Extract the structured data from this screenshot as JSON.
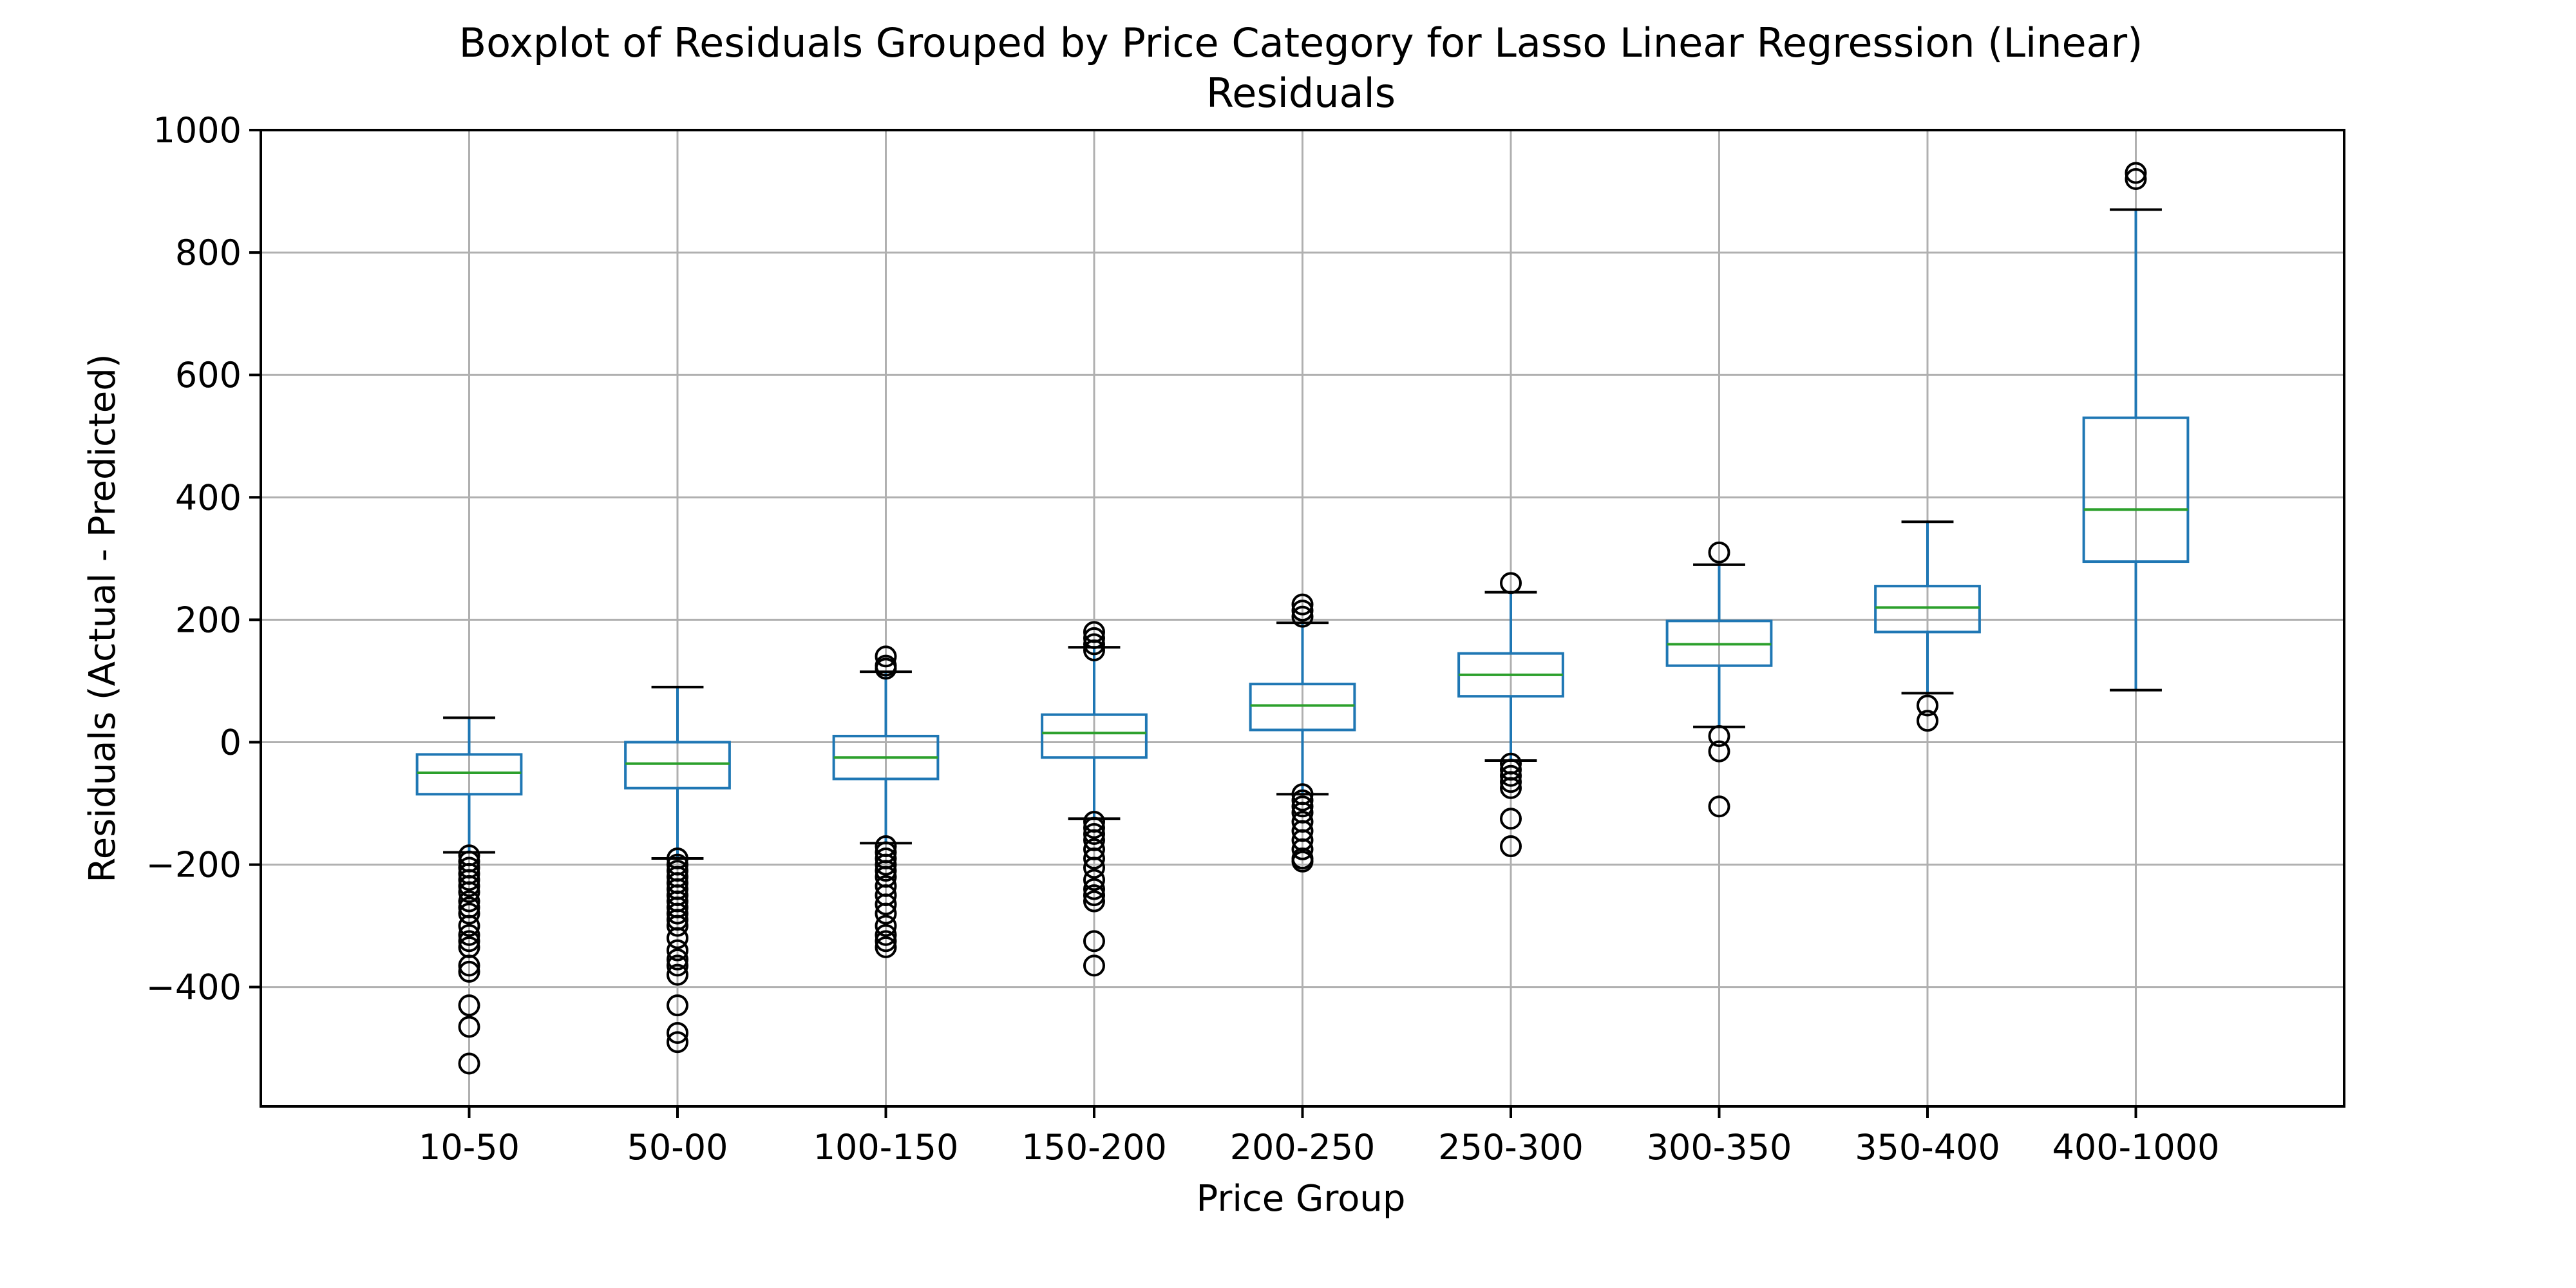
{
  "chart_data": {
    "type": "boxplot",
    "title": "Boxplot of Residuals Grouped by Price Category for Lasso Linear Regression (Linear)",
    "subtitle": "Residuals",
    "xlabel": "Price Group",
    "ylabel": "Residuals (Actual - Predicted)",
    "ylim": [
      -595,
      1000
    ],
    "yticks": [
      -400,
      -200,
      0,
      200,
      400,
      600,
      800,
      1000
    ],
    "ytick_labels": [
      "−400",
      "−200",
      "0",
      "200",
      "400",
      "600",
      "800",
      "1000"
    ],
    "grid": true,
    "categories": [
      "10-50",
      "50-00",
      "100-150",
      "150-200",
      "200-250",
      "250-300",
      "300-350",
      "350-400",
      "400-1000"
    ],
    "boxes": [
      {
        "whislo": -180,
        "q1": -85,
        "med": -50,
        "q3": -20,
        "whishi": 40,
        "fliers": [
          -185,
          -195,
          -205,
          -215,
          -225,
          -235,
          -245,
          -260,
          -270,
          -280,
          -300,
          -315,
          -325,
          -335,
          -365,
          -375,
          -430,
          -465,
          -525
        ]
      },
      {
        "whislo": -190,
        "q1": -75,
        "med": -35,
        "q3": 0,
        "whishi": 90,
        "fliers": [
          -190,
          -200,
          -210,
          -220,
          -230,
          -240,
          -250,
          -260,
          -270,
          -280,
          -290,
          -300,
          -320,
          -340,
          -355,
          -365,
          -380,
          -430,
          -475,
          -490
        ]
      },
      {
        "whislo": -165,
        "q1": -60,
        "med": -25,
        "q3": 10,
        "whishi": 115,
        "fliers": [
          120,
          125,
          140,
          -170,
          -180,
          -190,
          -200,
          -210,
          -220,
          -235,
          -250,
          -265,
          -280,
          -300,
          -315,
          -325,
          -335
        ]
      },
      {
        "whislo": -125,
        "q1": -25,
        "med": 15,
        "q3": 45,
        "whishi": 155,
        "fliers": [
          150,
          160,
          170,
          180,
          -130,
          -140,
          -150,
          -160,
          -175,
          -190,
          -205,
          -225,
          -240,
          -250,
          -260,
          -325,
          -365
        ]
      },
      {
        "whislo": -85,
        "q1": 20,
        "med": 60,
        "q3": 95,
        "whishi": 195,
        "fliers": [
          205,
          215,
          225,
          -85,
          -95,
          -105,
          -115,
          -130,
          -145,
          -160,
          -175,
          -190,
          -195
        ]
      },
      {
        "whislo": -30,
        "q1": 75,
        "med": 110,
        "q3": 145,
        "whishi": 245,
        "fliers": [
          260,
          -35,
          -45,
          -55,
          -65,
          -75,
          -125,
          -170
        ]
      },
      {
        "whislo": 25,
        "q1": 125,
        "med": 160,
        "q3": 198,
        "whishi": 290,
        "fliers": [
          310,
          10,
          -15,
          -105
        ]
      },
      {
        "whislo": 80,
        "q1": 180,
        "med": 220,
        "q3": 255,
        "whishi": 360,
        "fliers": [
          60,
          35
        ]
      },
      {
        "whislo": 85,
        "q1": 295,
        "med": 380,
        "q3": 530,
        "whishi": 870,
        "fliers": [
          920,
          930
        ]
      }
    ],
    "colors": {
      "box": "#1f77b4",
      "median": "#2ca02c",
      "whisker_cap": "#000000",
      "flier": "#000000",
      "grid": "#b0b0b0",
      "axes": "#000000"
    }
  }
}
